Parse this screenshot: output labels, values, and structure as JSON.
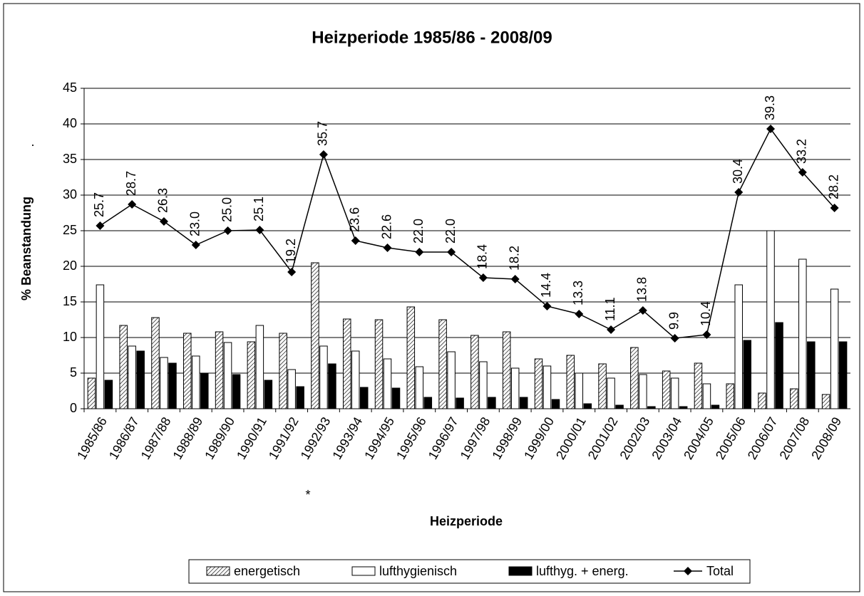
{
  "chart_data": {
    "type": "bar",
    "title": "Heizperiode 1985/86 - 2008/09",
    "x_label": "Heizperiode",
    "y_label": "% Beanstandung",
    "annotations": [
      ".",
      "*"
    ],
    "categories": [
      "1985/86",
      "1986/87",
      "1987/88",
      "1988/89",
      "1989/90",
      "1990/91",
      "1991/92",
      "1992/93",
      "1993/94",
      "1994/95",
      "1995/96",
      "1996/97",
      "1997/98",
      "1998/99",
      "1999/00",
      "2000/01",
      "2001/02",
      "2002/03",
      "2003/04",
      "2004/05",
      "2005/06",
      "2006/07",
      "2007/08",
      "2008/09"
    ],
    "series": [
      {
        "name": "energetisch",
        "type": "bar",
        "color": "#000000",
        "pattern": "hatch",
        "values": [
          4.3,
          11.7,
          12.8,
          10.6,
          10.8,
          9.4,
          10.6,
          20.5,
          12.6,
          12.5,
          14.3,
          12.5,
          10.3,
          10.8,
          7.0,
          7.5,
          6.3,
          8.6,
          5.3,
          6.4,
          3.5,
          2.2,
          2.8,
          2.0
        ]
      },
      {
        "name": "lufthygienisch",
        "type": "bar",
        "color": "#ffffff",
        "values": [
          17.4,
          8.8,
          7.2,
          7.4,
          9.3,
          11.7,
          5.5,
          8.8,
          8.1,
          7.0,
          5.9,
          8.0,
          6.6,
          5.7,
          6.0,
          5.0,
          4.3,
          4.8,
          4.3,
          3.5,
          17.4,
          25.0,
          21.0,
          16.8
        ]
      },
      {
        "name": "lufthyg. + energ.",
        "type": "bar",
        "color": "#000000",
        "values": [
          4.0,
          8.1,
          6.4,
          5.0,
          4.8,
          4.0,
          3.1,
          6.3,
          3.0,
          2.9,
          1.6,
          1.5,
          1.6,
          1.6,
          1.3,
          0.7,
          0.5,
          0.3,
          0.3,
          0.5,
          9.6,
          12.1,
          9.4,
          9.4
        ]
      },
      {
        "name": "Total",
        "type": "line",
        "color": "#000000",
        "values": [
          25.7,
          28.7,
          26.3,
          23,
          25,
          25.1,
          19.2,
          35.7,
          23.6,
          22.6,
          22,
          22,
          18.4,
          18.2,
          14.4,
          13.3,
          11.1,
          13.8,
          9.9,
          10.4,
          30.4,
          39.3,
          33.2,
          28.2
        ],
        "value_labels": [
          "25.7",
          "28.7",
          "26.3",
          "23.0",
          "25.0",
          "25.1",
          "19.2",
          "35.7",
          "23.6",
          "22.6",
          "22.0",
          "22.0",
          "18.4",
          "18.2",
          "14.4",
          "13.3",
          "11.1",
          "13.8",
          "9.9",
          "10.4",
          "30.4",
          "39.3",
          "33.2",
          "28.2"
        ]
      }
    ],
    "ylim": [
      0,
      45
    ],
    "yticks": [
      0,
      5,
      10,
      15,
      20,
      25,
      30,
      35,
      40,
      45
    ],
    "grid": true,
    "legend": "bottom"
  }
}
